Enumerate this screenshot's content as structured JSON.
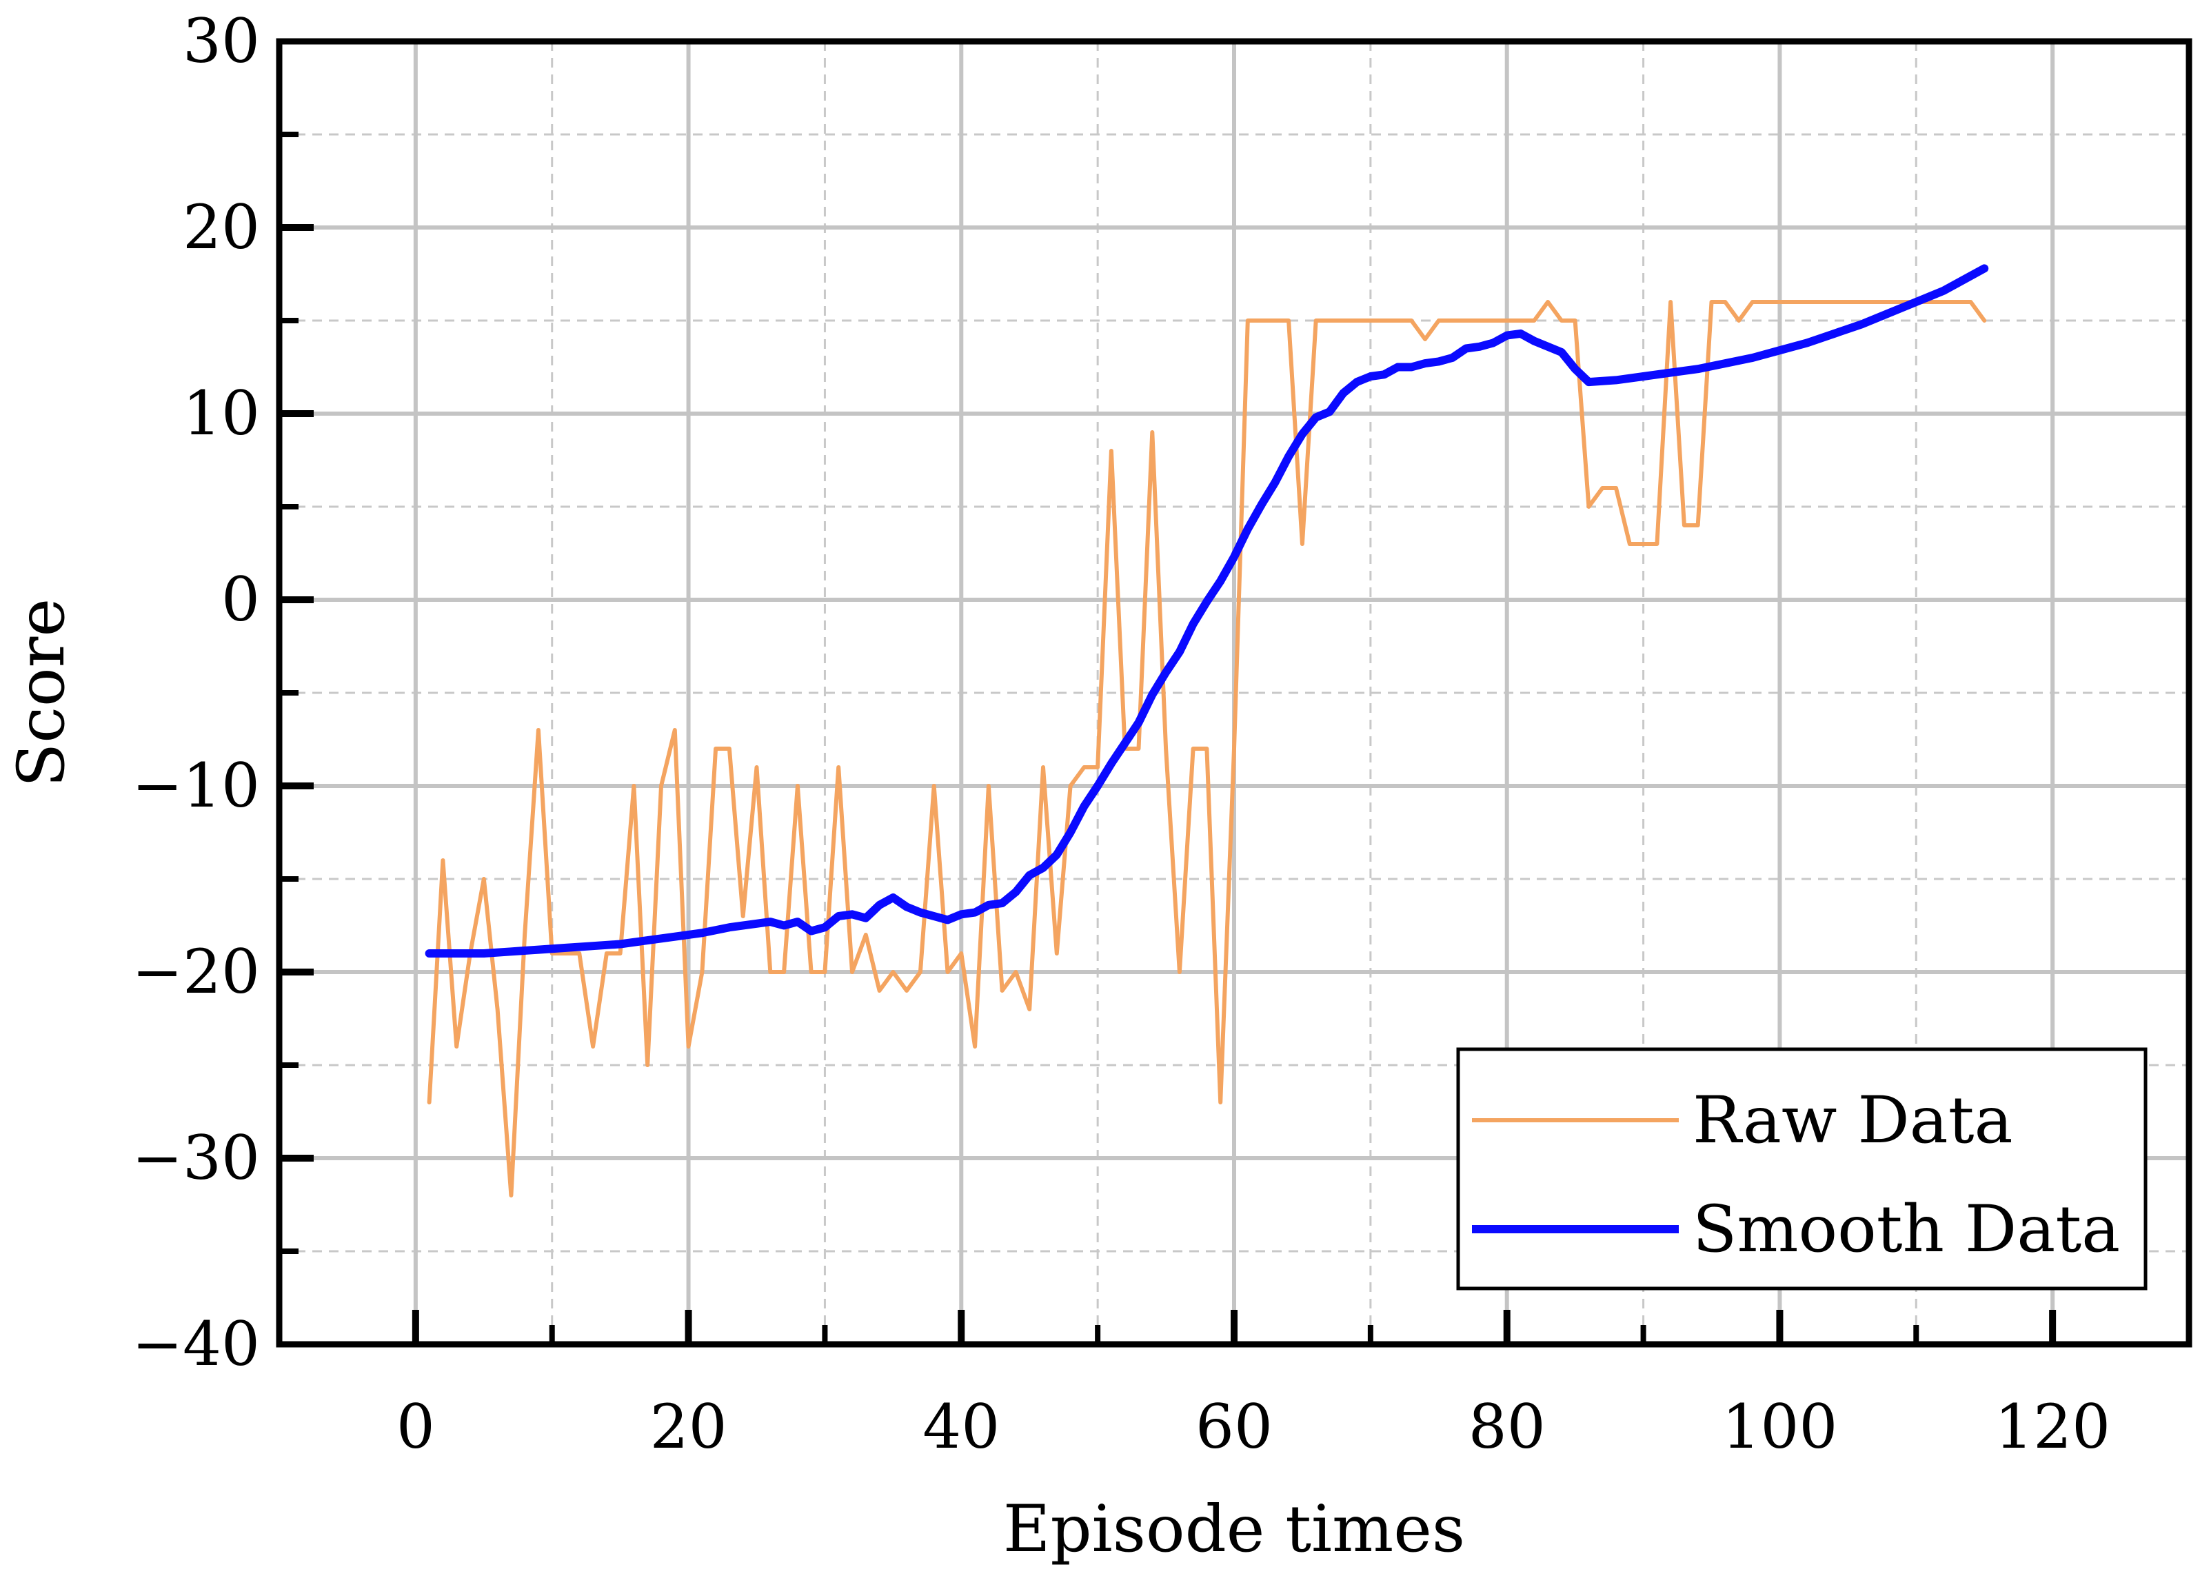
{
  "chart_data": {
    "type": "line",
    "xlabel": "Episode times",
    "ylabel": "Score",
    "xlim": [
      -10,
      130
    ],
    "ylim": [
      -40,
      30
    ],
    "xticks": [
      0,
      20,
      40,
      60,
      80,
      100,
      120
    ],
    "yticks": [
      -40,
      -30,
      -20,
      -10,
      0,
      10,
      20,
      30
    ],
    "x_minor_step": 10,
    "y_minor_step": 5,
    "grid": true,
    "legend_position": "bottom-right",
    "series": [
      {
        "name": "Raw Data",
        "color": "#f4a460",
        "points": [
          [
            1,
            -27
          ],
          [
            2,
            -14
          ],
          [
            3,
            -24
          ],
          [
            4,
            -19
          ],
          [
            5,
            -15
          ],
          [
            6,
            -22
          ],
          [
            7,
            -32
          ],
          [
            8,
            -18
          ],
          [
            9,
            -7
          ],
          [
            10,
            -19
          ],
          [
            11,
            -19
          ],
          [
            12,
            -19
          ],
          [
            13,
            -24
          ],
          [
            14,
            -19
          ],
          [
            15,
            -19
          ],
          [
            16,
            -10
          ],
          [
            17,
            -25
          ],
          [
            18,
            -10
          ],
          [
            19,
            -7
          ],
          [
            20,
            -24
          ],
          [
            21,
            -20
          ],
          [
            22,
            -8
          ],
          [
            23,
            -8
          ],
          [
            24,
            -17
          ],
          [
            25,
            -9
          ],
          [
            26,
            -20
          ],
          [
            27,
            -20
          ],
          [
            28,
            -10
          ],
          [
            29,
            -20
          ],
          [
            30,
            -20
          ],
          [
            31,
            -9
          ],
          [
            32,
            -20
          ],
          [
            33,
            -18
          ],
          [
            34,
            -21
          ],
          [
            35,
            -20
          ],
          [
            36,
            -21
          ],
          [
            37,
            -20
          ],
          [
            38,
            -10
          ],
          [
            39,
            -20
          ],
          [
            40,
            -19
          ],
          [
            41,
            -24
          ],
          [
            42,
            -10
          ],
          [
            43,
            -21
          ],
          [
            44,
            -20
          ],
          [
            45,
            -22
          ],
          [
            46,
            -9
          ],
          [
            47,
            -19
          ],
          [
            48,
            -10
          ],
          [
            49,
            -9
          ],
          [
            50,
            -9
          ],
          [
            51,
            8
          ],
          [
            52,
            -8
          ],
          [
            53,
            -8
          ],
          [
            54,
            9
          ],
          [
            55,
            -8
          ],
          [
            56,
            -20
          ],
          [
            57,
            -8
          ],
          [
            58,
            -8
          ],
          [
            59,
            -27
          ],
          [
            60,
            -8
          ],
          [
            61,
            15
          ],
          [
            62,
            15
          ],
          [
            63,
            15
          ],
          [
            64,
            15
          ],
          [
            65,
            3
          ],
          [
            66,
            15
          ],
          [
            67,
            15
          ],
          [
            68,
            15
          ],
          [
            69,
            15
          ],
          [
            70,
            15
          ],
          [
            71,
            15
          ],
          [
            72,
            15
          ],
          [
            73,
            15
          ],
          [
            74,
            14
          ],
          [
            75,
            15
          ],
          [
            76,
            15
          ],
          [
            77,
            15
          ],
          [
            78,
            15
          ],
          [
            79,
            15
          ],
          [
            80,
            15
          ],
          [
            81,
            15
          ],
          [
            82,
            15
          ],
          [
            83,
            16
          ],
          [
            84,
            15
          ],
          [
            85,
            15
          ],
          [
            86,
            5
          ],
          [
            87,
            6
          ],
          [
            88,
            6
          ],
          [
            89,
            3
          ],
          [
            90,
            3
          ],
          [
            91,
            3
          ],
          [
            92,
            16
          ],
          [
            93,
            4
          ],
          [
            94,
            4
          ],
          [
            95,
            16
          ],
          [
            96,
            16
          ],
          [
            97,
            15
          ],
          [
            98,
            16
          ],
          [
            99,
            16
          ],
          [
            100,
            16
          ],
          [
            101,
            16
          ],
          [
            102,
            16
          ],
          [
            103,
            16
          ],
          [
            104,
            16
          ],
          [
            105,
            16
          ],
          [
            106,
            16
          ],
          [
            107,
            16
          ],
          [
            108,
            16
          ],
          [
            109,
            16
          ],
          [
            110,
            16
          ],
          [
            111,
            16
          ],
          [
            112,
            16
          ],
          [
            113,
            16
          ],
          [
            114,
            16
          ],
          [
            115,
            15
          ]
        ]
      },
      {
        "name": "Smooth Data",
        "color": "#0a0aff",
        "points": [
          [
            1,
            -19
          ],
          [
            3,
            -19
          ],
          [
            5,
            -19
          ],
          [
            7,
            -18.9
          ],
          [
            9,
            -18.8
          ],
          [
            11,
            -18.7
          ],
          [
            13,
            -18.6
          ],
          [
            15,
            -18.5
          ],
          [
            17,
            -18.3
          ],
          [
            19,
            -18.1
          ],
          [
            21,
            -17.9
          ],
          [
            23,
            -17.6
          ],
          [
            25,
            -17.4
          ],
          [
            26,
            -17.3
          ],
          [
            27,
            -17.5
          ],
          [
            28,
            -17.3
          ],
          [
            29,
            -17.8
          ],
          [
            30,
            -17.6
          ],
          [
            31,
            -17
          ],
          [
            32,
            -16.9
          ],
          [
            33,
            -17.1
          ],
          [
            34,
            -16.4
          ],
          [
            35,
            -16
          ],
          [
            36,
            -16.5
          ],
          [
            37,
            -16.8
          ],
          [
            38,
            -17
          ],
          [
            39,
            -17.2
          ],
          [
            40,
            -16.9
          ],
          [
            41,
            -16.8
          ],
          [
            42,
            -16.4
          ],
          [
            43,
            -16.3
          ],
          [
            44,
            -15.7
          ],
          [
            45,
            -14.8
          ],
          [
            46,
            -14.4
          ],
          [
            47,
            -13.7
          ],
          [
            48,
            -12.5
          ],
          [
            49,
            -11.1
          ],
          [
            50,
            -10
          ],
          [
            51,
            -8.8
          ],
          [
            52,
            -7.7
          ],
          [
            53,
            -6.6
          ],
          [
            54,
            -5.1
          ],
          [
            55,
            -3.9
          ],
          [
            56,
            -2.8
          ],
          [
            57,
            -1.3
          ],
          [
            58,
            -0.1
          ],
          [
            59,
            1
          ],
          [
            60,
            2.3
          ],
          [
            61,
            3.8
          ],
          [
            62,
            5.1
          ],
          [
            63,
            6.3
          ],
          [
            64,
            7.7
          ],
          [
            65,
            8.9
          ],
          [
            66,
            9.8
          ],
          [
            67,
            10.1
          ],
          [
            68,
            11.1
          ],
          [
            69,
            11.7
          ],
          [
            70,
            12
          ],
          [
            71,
            12.1
          ],
          [
            72,
            12.5
          ],
          [
            73,
            12.5
          ],
          [
            74,
            12.7
          ],
          [
            75,
            12.8
          ],
          [
            76,
            13
          ],
          [
            77,
            13.5
          ],
          [
            78,
            13.6
          ],
          [
            79,
            13.8
          ],
          [
            80,
            14.2
          ],
          [
            81,
            14.3
          ],
          [
            82,
            13.9
          ],
          [
            83,
            13.6
          ],
          [
            84,
            13.3
          ],
          [
            85,
            12.4
          ],
          [
            86,
            11.7
          ],
          [
            88,
            11.8
          ],
          [
            90,
            12
          ],
          [
            92,
            12.2
          ],
          [
            94,
            12.4
          ],
          [
            96,
            12.7
          ],
          [
            98,
            13
          ],
          [
            100,
            13.4
          ],
          [
            102,
            13.8
          ],
          [
            104,
            14.3
          ],
          [
            106,
            14.8
          ],
          [
            108,
            15.4
          ],
          [
            110,
            16
          ],
          [
            112,
            16.6
          ],
          [
            114,
            17.4
          ],
          [
            115,
            17.8
          ]
        ]
      }
    ]
  }
}
